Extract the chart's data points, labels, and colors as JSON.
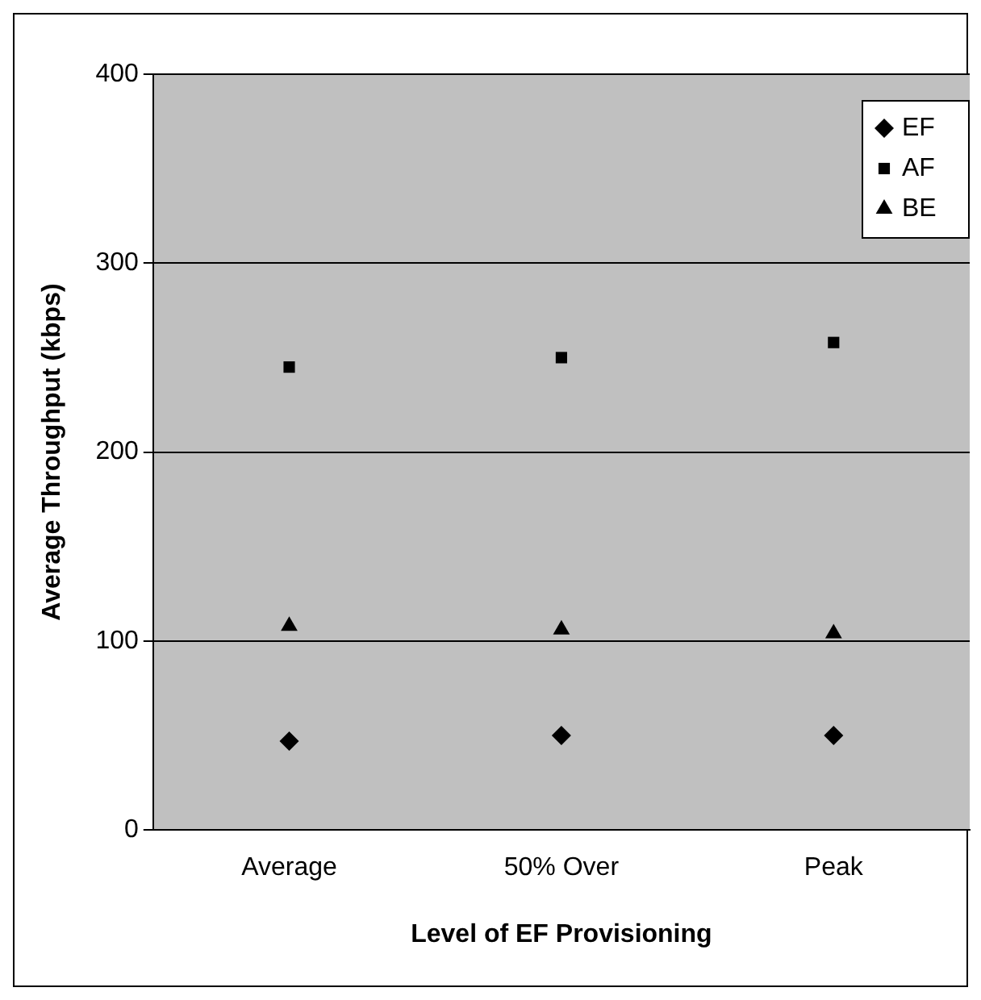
{
  "chart_data": {
    "type": "scatter",
    "xlabel": "Level of EF Provisioning",
    "ylabel": "Average Throughput (kbps)",
    "categories": [
      "Average",
      "50% Over",
      "Peak"
    ],
    "ylim": [
      0,
      400
    ],
    "yticks": [
      0,
      100,
      200,
      300,
      400
    ],
    "grid": "y",
    "legend": "top right",
    "series": [
      {
        "name": "EF",
        "color": "#000000",
        "marker": "diamond",
        "values": [
          47,
          50,
          50
        ]
      },
      {
        "name": "AF",
        "color": "#000000",
        "marker": "square",
        "values": [
          245,
          250,
          258
        ]
      },
      {
        "name": "BE",
        "color": "#000000",
        "marker": "triangle",
        "values": [
          108,
          106,
          104
        ]
      }
    ]
  }
}
